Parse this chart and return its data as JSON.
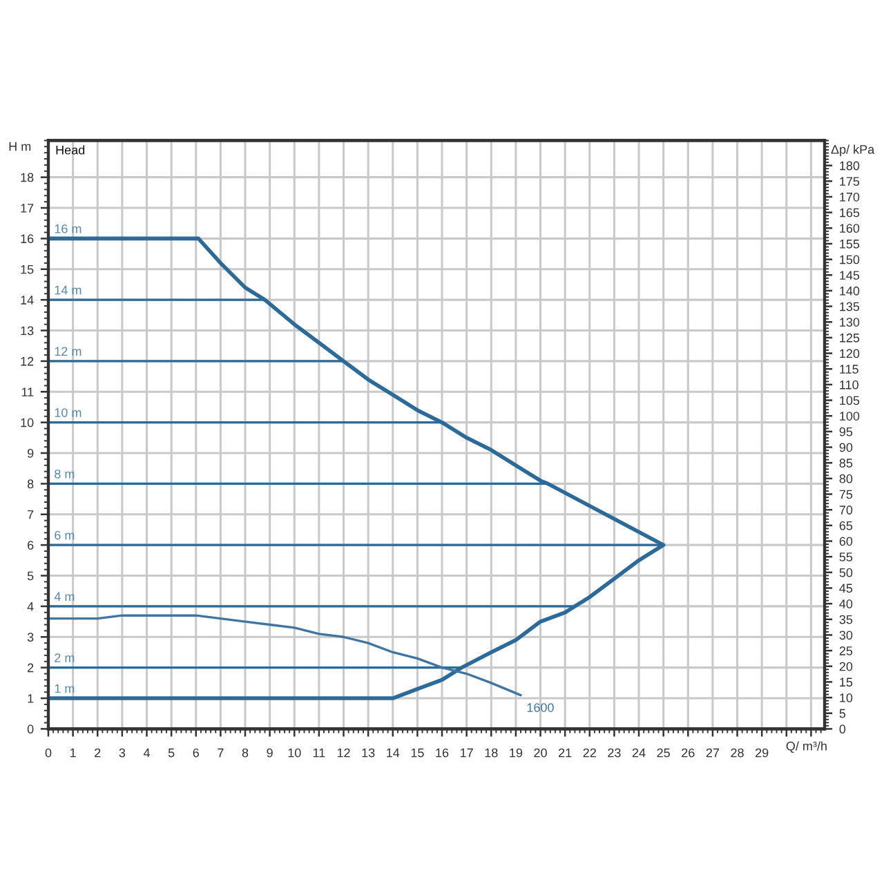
{
  "chart_data": {
    "type": "line",
    "title": "Head",
    "xlabel": "Q/ m³/h",
    "ylabel": "H m",
    "y2label": "Δp/ kPa",
    "xlim": [
      0,
      31.55
    ],
    "ylim": [
      0,
      19.2
    ],
    "y2lim": [
      0,
      188
    ],
    "xticks": [
      0,
      1,
      2,
      3,
      4,
      5,
      6,
      7,
      8,
      9,
      10,
      11,
      12,
      13,
      14,
      15,
      16,
      17,
      18,
      19,
      20,
      21,
      22,
      23,
      24,
      25,
      26,
      27,
      28,
      29,
      {
        "value": 30,
        "label": null
      },
      {
        "value": 31,
        "label": null
      }
    ],
    "yticks": [
      0,
      1,
      2,
      3,
      4,
      5,
      6,
      7,
      8,
      9,
      10,
      11,
      12,
      13,
      14,
      15,
      16,
      17,
      18
    ],
    "y2ticks": [
      0,
      5,
      10,
      15,
      20,
      25,
      30,
      35,
      40,
      45,
      50,
      55,
      60,
      65,
      70,
      75,
      80,
      85,
      90,
      95,
      100,
      105,
      110,
      115,
      120,
      125,
      130,
      135,
      140,
      145,
      150,
      155,
      160,
      165,
      170,
      175,
      180
    ],
    "grid": true,
    "line_style": "solid",
    "series": [
      {
        "color": "#2c6a9a",
        "x": [
          0,
          6.1,
          7,
          8,
          8.8,
          10,
          11,
          12,
          13,
          14,
          15,
          16,
          17,
          18,
          19,
          20,
          20.3,
          25,
          24,
          23,
          22,
          21.4,
          21,
          20,
          19,
          18,
          16.8,
          16,
          15,
          14,
          0
        ],
        "values": [
          16,
          16,
          15.2,
          14.4,
          14,
          13.2,
          12.6,
          12,
          11.4,
          10.9,
          10.4,
          10,
          9.5,
          9.1,
          8.6,
          8.1,
          8,
          6,
          5.5,
          4.9,
          4.3,
          4,
          3.8,
          3.5,
          2.9,
          2.5,
          2,
          1.6,
          1.3,
          1,
          1
        ]
      },
      {
        "color": "#2c6a9a",
        "x": [
          0,
          8.8
        ],
        "values": [
          14,
          14
        ]
      },
      {
        "color": "#2c6a9a",
        "x": [
          0,
          12
        ],
        "values": [
          12,
          12
        ]
      },
      {
        "color": "#2c6a9a",
        "x": [
          0,
          16
        ],
        "values": [
          10,
          10
        ]
      },
      {
        "color": "#2c6a9a",
        "x": [
          0,
          20.3
        ],
        "values": [
          8,
          8
        ]
      },
      {
        "color": "#2c6a9a",
        "x": [
          0,
          25
        ],
        "values": [
          6,
          6
        ]
      },
      {
        "color": "#2c6a9a",
        "x": [
          0,
          21.4
        ],
        "values": [
          4,
          4
        ]
      },
      {
        "color": "#2c6a9a",
        "x": [
          0,
          16.8
        ],
        "values": [
          2,
          2
        ]
      },
      {
        "name": "1600",
        "color": "#3f74a3",
        "x": [
          0,
          1,
          2,
          3,
          4,
          5,
          6,
          7,
          8,
          9,
          10,
          11,
          12,
          13,
          14,
          15,
          16,
          17,
          18,
          19.2
        ],
        "values": [
          3.6,
          3.6,
          3.6,
          3.7,
          3.7,
          3.7,
          3.7,
          3.6,
          3.5,
          3.4,
          3.3,
          3.1,
          3.0,
          2.8,
          2.5,
          2.3,
          2.0,
          1.8,
          1.5,
          1.1
        ]
      }
    ],
    "annotations": [
      {
        "text": "16 m",
        "y": 16
      },
      {
        "text": "14 m",
        "y": 14
      },
      {
        "text": "12 m",
        "y": 12
      },
      {
        "text": "10 m",
        "y": 10
      },
      {
        "text": "8 m",
        "y": 8
      },
      {
        "text": "6 m",
        "y": 6
      },
      {
        "text": "4 m",
        "y": 4
      },
      {
        "text": "2 m",
        "y": 2
      },
      {
        "text": "1 m",
        "y": 1
      }
    ]
  }
}
